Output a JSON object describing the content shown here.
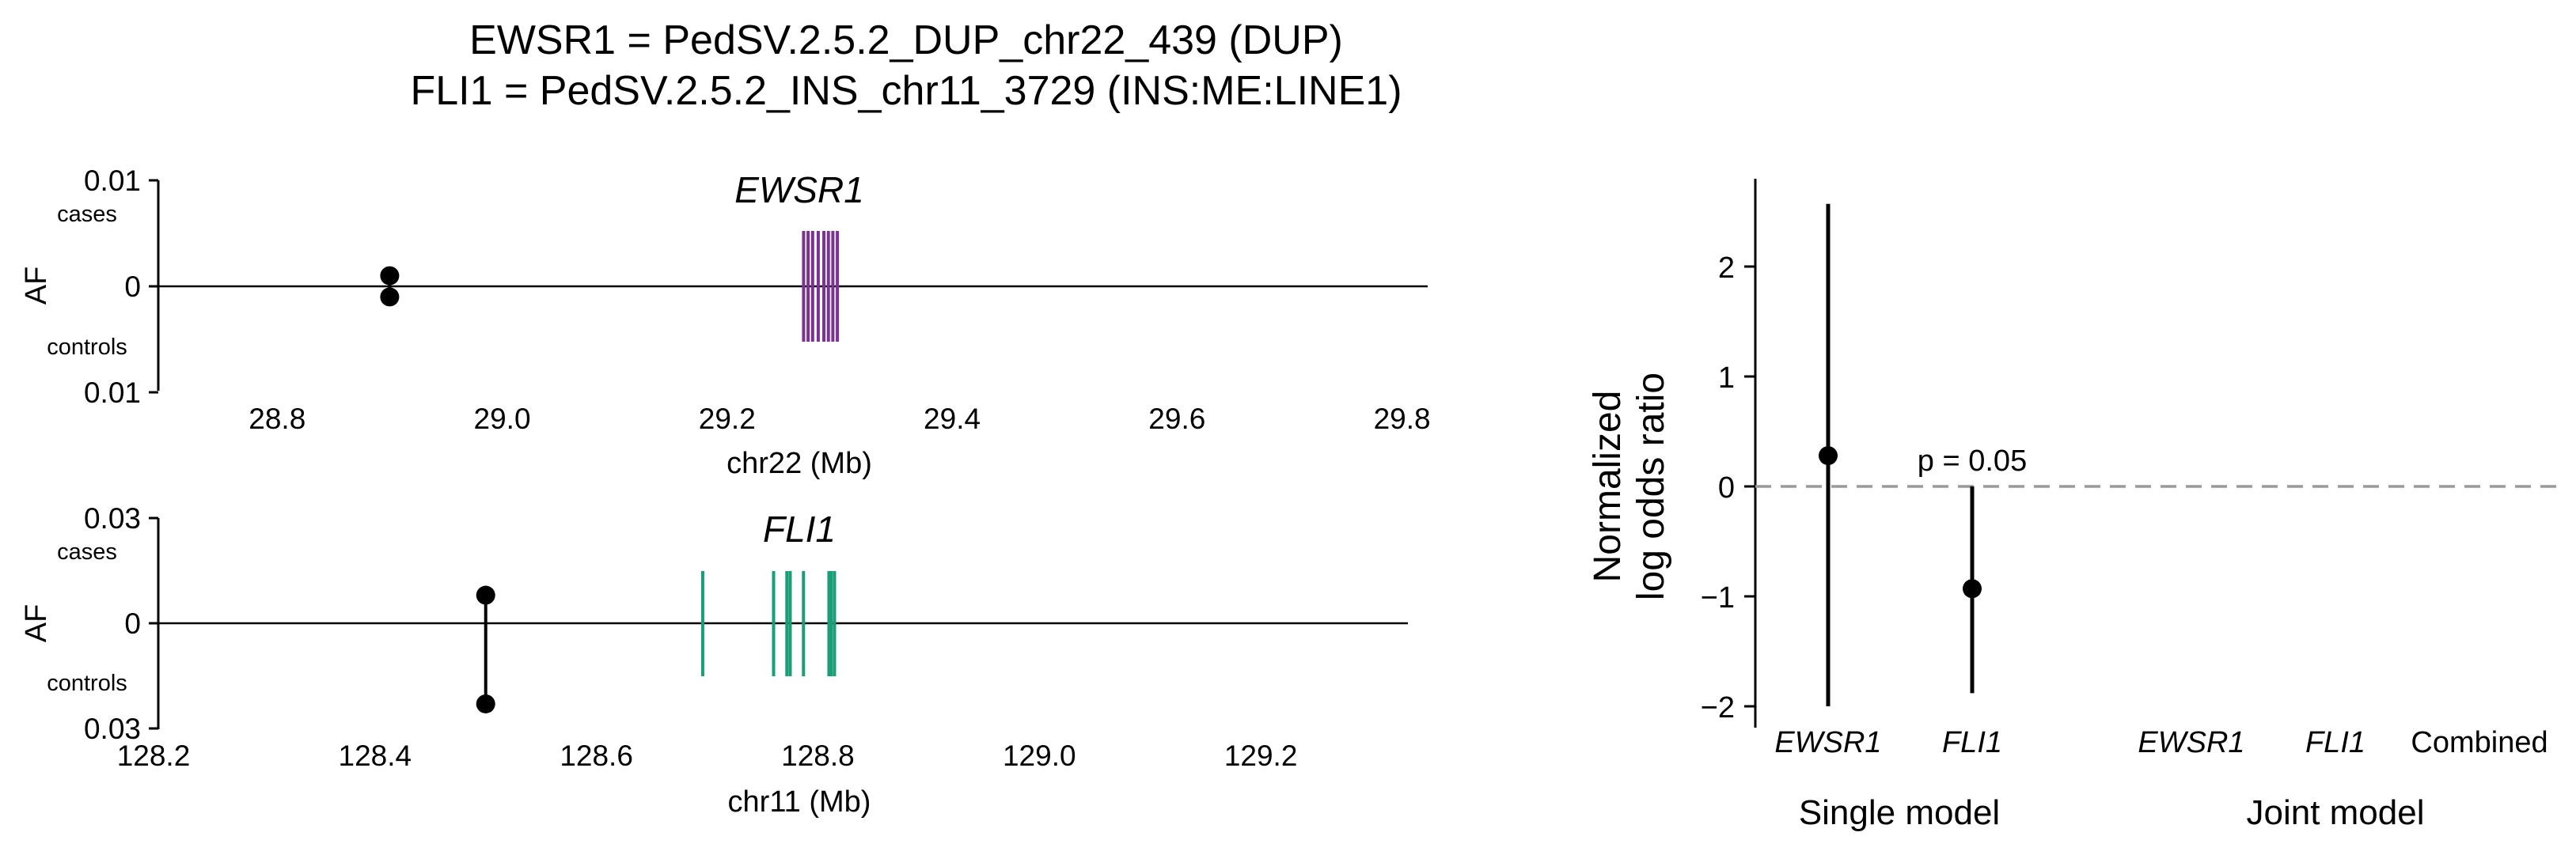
{
  "title": {
    "line1": "EWSR1 = PedSV.2.5.2_DUP_chr22_439 (DUP)",
    "line2": "FLI1 = PedSV.2.5.2_INS_chr11_3729 (INS:ME:LINE1)"
  },
  "chart_data": [
    {
      "type": "scatter",
      "panel": "EWSR1 locus",
      "gene_label": "EWSR1",
      "xlabel": "chr22 (Mb)",
      "ylabel": "AF",
      "xlim": [
        28.74,
        29.82
      ],
      "xticks": [
        "28.8",
        "29.0",
        "29.2",
        "29.4",
        "29.6",
        "29.8"
      ],
      "yticks": [
        {
          "value": 0.01,
          "label": "0.01",
          "sub": "cases"
        },
        {
          "value": 0,
          "label": "0"
        },
        {
          "value": -0.01,
          "label": "0.01",
          "sub": "controls"
        }
      ],
      "ylim": [
        -0.01,
        0.01
      ],
      "sv": {
        "pos": 28.9,
        "af_cases": 0.001,
        "af_controls": 0.001
      },
      "exons": [
        29.268,
        29.272,
        29.276,
        29.281,
        29.286,
        29.29,
        29.294,
        29.298
      ],
      "exon_color": "#7b3294"
    },
    {
      "type": "scatter",
      "panel": "FLI1 locus",
      "gene_label": "FLI1",
      "xlabel": "chr11 (Mb)",
      "ylabel": "AF",
      "xlim": [
        128.19,
        129.33
      ],
      "xticks": [
        "128.2",
        "128.4",
        "128.6",
        "128.8",
        "129.0",
        "129.2"
      ],
      "yticks": [
        {
          "value": 0.03,
          "label": "0.03",
          "sub": "cases"
        },
        {
          "value": 0,
          "label": "0"
        },
        {
          "value": -0.03,
          "label": "0.03",
          "sub": "controls"
        }
      ],
      "ylim": [
        -0.03,
        0.03
      ],
      "sv": {
        "pos": 128.5,
        "af_cases": 0.008,
        "af_controls": 0.023
      },
      "exons": [
        128.696,
        128.76,
        128.772,
        128.775,
        128.787,
        128.81,
        128.812,
        128.815
      ],
      "exon_color": "#1b9e77"
    },
    {
      "type": "scatter",
      "panel": "association",
      "ylabel": "Normalized\nlog odds ratio",
      "ylim": [
        -2.05,
        2.8
      ],
      "yticks": [
        "2",
        "1",
        "0",
        "−1",
        "−2"
      ],
      "categories": [
        "EWSR1",
        "FLI1",
        "EWSR1",
        "FLI1",
        "Combined"
      ],
      "groups": [
        "Single model",
        "Joint model"
      ],
      "points": [
        {
          "category": "EWSR1",
          "group": "Single model",
          "value": 0.28,
          "ci": [
            -2.0,
            2.57
          ]
        },
        {
          "category": "FLI1",
          "group": "Single model",
          "value": -0.93,
          "ci": [
            -1.88,
            0.0
          ],
          "annotation": "p = 0.05"
        }
      ],
      "reference_line": {
        "value": 0,
        "style": "dashed",
        "color": "#999999"
      }
    }
  ]
}
